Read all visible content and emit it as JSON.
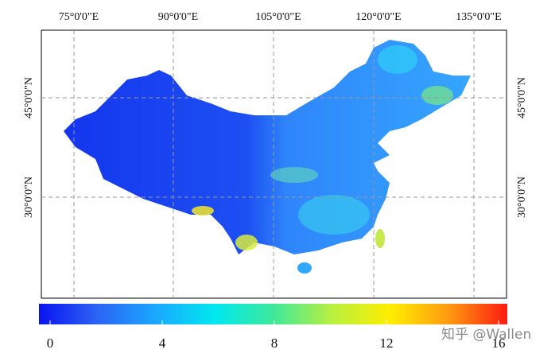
{
  "map": {
    "lon_labels": [
      "75°0'0\"E",
      "90°0'0\"E",
      "105°0'0\"E",
      "120°0'0\"E",
      "135°0'0\"E"
    ],
    "lat_labels": [
      "45°0'0\"N",
      "30°0'0\"N"
    ]
  },
  "colorbar": {
    "lim": [
      0,
      16
    ],
    "ticks": [
      0,
      4,
      8,
      12,
      16
    ],
    "colors": [
      "#0a14f0",
      "#2c64f5",
      "#1aa8ff",
      "#00e8f0",
      "#3ee89a",
      "#b8f040",
      "#ffee00",
      "#ff9a10",
      "#ff1a10"
    ]
  },
  "watermark": "知乎 @Wallen"
}
